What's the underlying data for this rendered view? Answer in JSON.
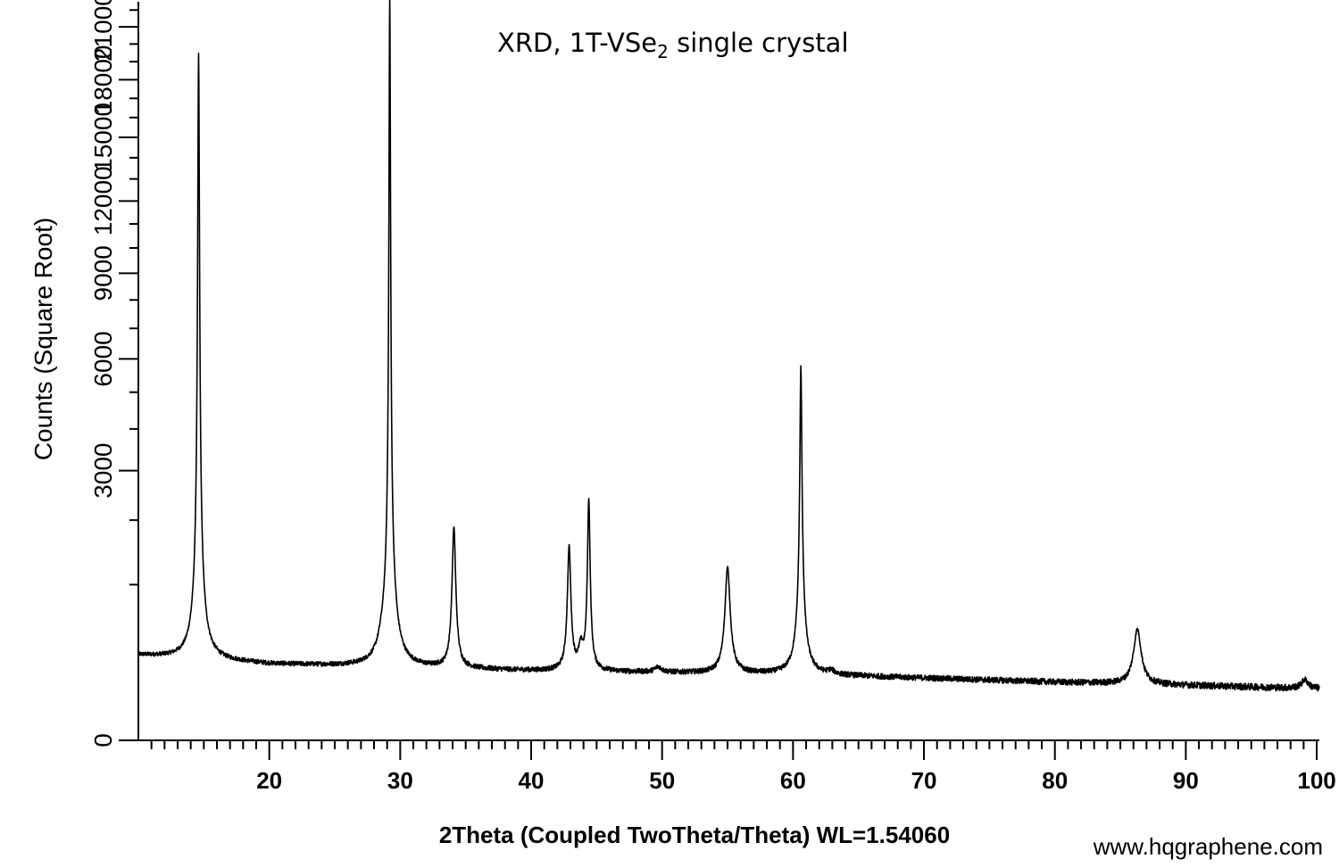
{
  "chart_data": {
    "type": "line",
    "title": {
      "main": "XRD, 1T-VSe",
      "subscript": "2",
      "rest": " single crystal"
    },
    "xlabel": "2Theta (Coupled TwoTheta/Theta) WL=1.54060",
    "ylabel": "Counts (Square Root)",
    "watermark": "www.hqgraphene.com",
    "y_scale": "sqrt",
    "xlim": [
      10,
      100.2
    ],
    "ylim": [
      0,
      22500
    ],
    "x_ticks": [
      "20",
      "30",
      "40",
      "50",
      "60",
      "70",
      "80",
      "90",
      "100"
    ],
    "y_ticks": [
      "0",
      "3000",
      "6000",
      "9000",
      "12000",
      "15000",
      "18000",
      "21000"
    ],
    "grid": false,
    "series": [
      {
        "baseline": {
          "x": [
            10,
            20,
            40,
            60,
            80,
            100.2
          ],
          "y": [
            300,
            240,
            200,
            180,
            140,
            110
          ]
        },
        "peaks": [
          {
            "x": 14.6,
            "y": 18600,
            "w": 0.07
          },
          {
            "x": 14.62,
            "y": 600,
            "w": 0.35
          },
          {
            "x": 28.6,
            "y": 60,
            "w": 0.3
          },
          {
            "x": 29.2,
            "y": 21800,
            "w": 0.06
          },
          {
            "x": 29.22,
            "y": 900,
            "w": 0.35
          },
          {
            "x": 34.1,
            "y": 1650,
            "w": 0.14
          },
          {
            "x": 42.9,
            "y": 1350,
            "w": 0.13
          },
          {
            "x": 43.8,
            "y": 150,
            "w": 0.2
          },
          {
            "x": 44.4,
            "y": 2200,
            "w": 0.1
          },
          {
            "x": 49.7,
            "y": 30,
            "w": 0.3
          },
          {
            "x": 55.0,
            "y": 1050,
            "w": 0.2
          },
          {
            "x": 60.6,
            "y": 5100,
            "w": 0.08
          },
          {
            "x": 60.6,
            "y": 500,
            "w": 0.3
          },
          {
            "x": 62.9,
            "y": 20,
            "w": 0.3
          },
          {
            "x": 86.3,
            "y": 380,
            "w": 0.3
          },
          {
            "x": 99.1,
            "y": 40,
            "w": 0.3
          }
        ],
        "noise": 15
      }
    ]
  },
  "colors": {
    "line": "#000000",
    "axis": "#000000",
    "background": "#ffffff"
  }
}
